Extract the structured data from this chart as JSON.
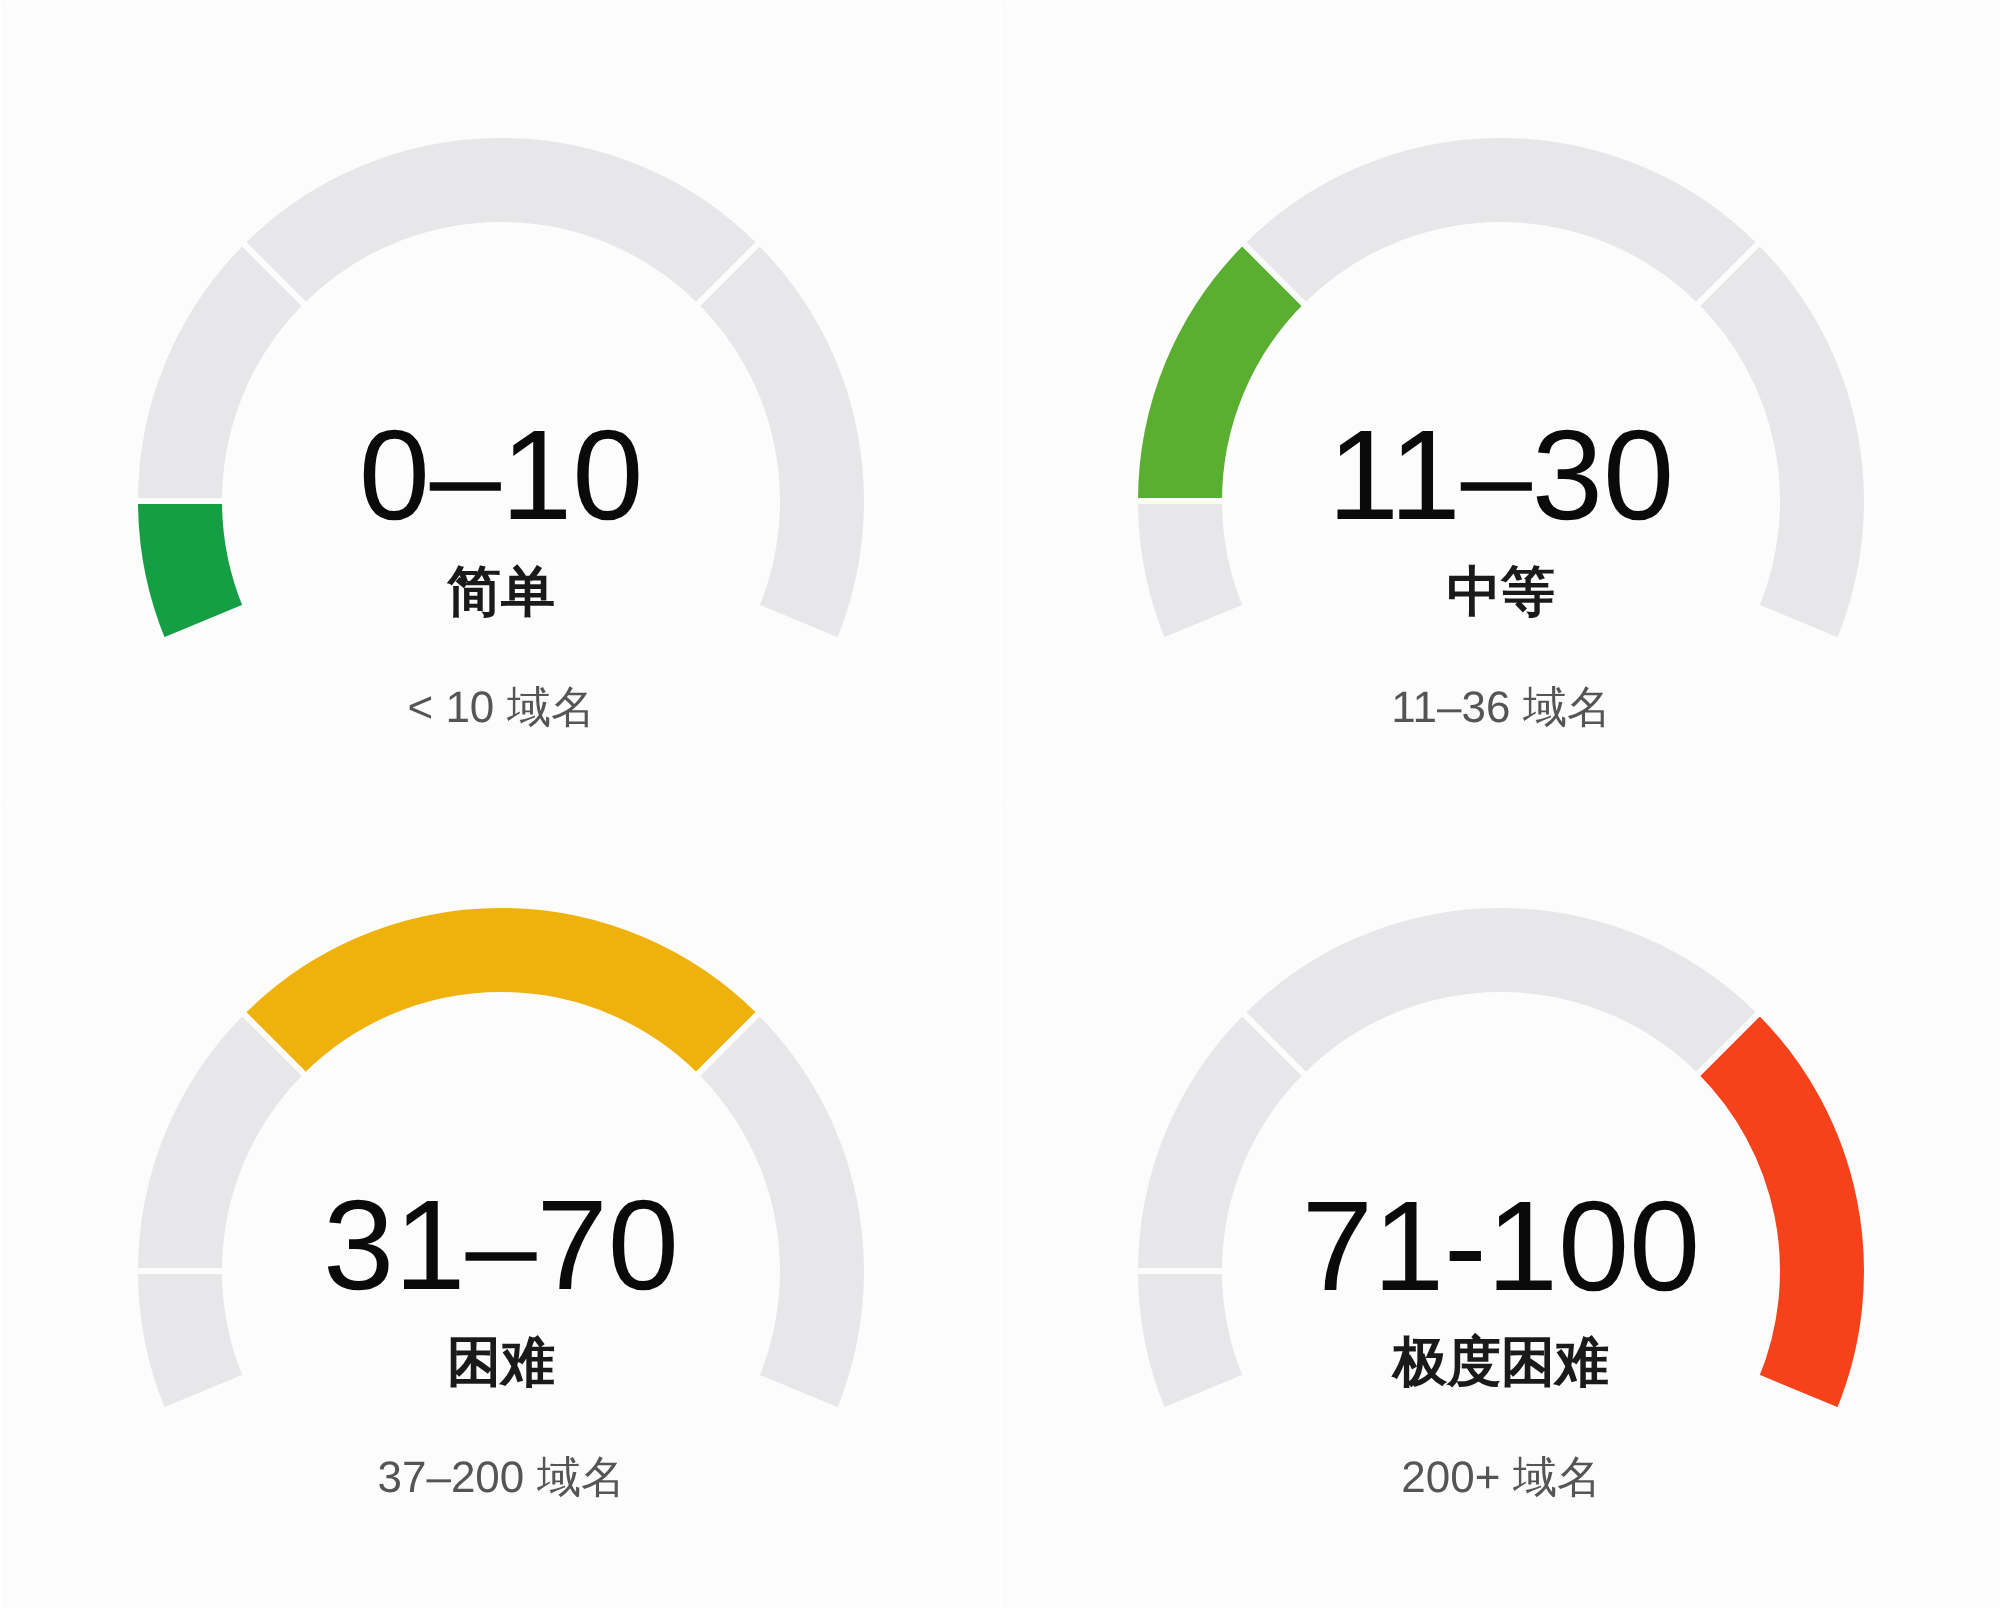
{
  "chart_data": [
    {
      "type": "donut",
      "title": "0–10",
      "subtitle": "简单",
      "annotations": [
        "< 10 域名"
      ],
      "categories": [
        null,
        null,
        null,
        null
      ],
      "values": [
        10,
        20,
        40,
        30
      ],
      "colors": [
        "#169e45",
        "#e7e7e9",
        "#e7e7e9",
        "#e7e7e9"
      ]
    },
    {
      "type": "donut",
      "title": "11–30",
      "subtitle": "中等",
      "annotations": [
        "11–36 域名"
      ],
      "categories": [
        null,
        null,
        null,
        null
      ],
      "values": [
        10,
        20,
        40,
        30
      ],
      "colors": [
        "#e7e7e9",
        "#5aae30",
        "#e7e7e9",
        "#e7e7e9"
      ]
    },
    {
      "type": "donut",
      "title": "31–70",
      "subtitle": "困难",
      "annotations": [
        "37–200 域名"
      ],
      "categories": [
        null,
        null,
        null,
        null
      ],
      "values": [
        10,
        20,
        40,
        30
      ],
      "colors": [
        "#e7e7e9",
        "#e7e7e9",
        "#efb20c",
        "#e7e7e9"
      ]
    },
    {
      "type": "donut",
      "title": "71-100",
      "subtitle": "极度困难",
      "annotations": [
        "200+ 域名"
      ],
      "categories": [
        null,
        null,
        null,
        null
      ],
      "values": [
        10,
        20,
        40,
        30
      ],
      "colors": [
        "#e7e7e9",
        "#e7e7e9",
        "#e7e7e9",
        "#f6421b"
      ]
    }
  ]
}
